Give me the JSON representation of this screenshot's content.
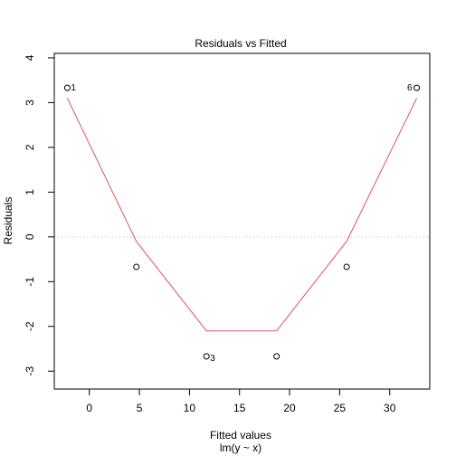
{
  "chart_data": {
    "type": "scatter",
    "title": "Residuals vs Fitted",
    "xlabel": "Fitted values",
    "subtitle": "lm(y ~ x)",
    "ylabel": "Residuals",
    "xlim": [
      -3.5,
      34.0
    ],
    "ylim": [
      -3.4,
      4.1
    ],
    "x_ticks": [
      0,
      5,
      10,
      15,
      20,
      25,
      30
    ],
    "y_ticks": [
      -3,
      -2,
      -1,
      0,
      1,
      2,
      3,
      4
    ],
    "zero_line": 0,
    "points": [
      {
        "x": -2.2,
        "y": 3.33,
        "label": "1"
      },
      {
        "x": 4.7,
        "y": -0.67,
        "label": ""
      },
      {
        "x": 11.7,
        "y": -2.67,
        "label": "3"
      },
      {
        "x": 18.7,
        "y": -2.67,
        "label": ""
      },
      {
        "x": 25.7,
        "y": -0.67,
        "label": ""
      },
      {
        "x": 32.7,
        "y": 3.33,
        "label": "6"
      }
    ],
    "smooth": [
      {
        "x": -2.2,
        "y": 3.1
      },
      {
        "x": 4.7,
        "y": -0.1
      },
      {
        "x": 11.7,
        "y": -2.1
      },
      {
        "x": 18.7,
        "y": -2.1
      },
      {
        "x": 25.7,
        "y": -0.1
      },
      {
        "x": 32.7,
        "y": 3.1
      }
    ],
    "colors": {
      "smooth": "#df536b",
      "zero_line": "#bbbbbb",
      "points": "#000000"
    }
  }
}
